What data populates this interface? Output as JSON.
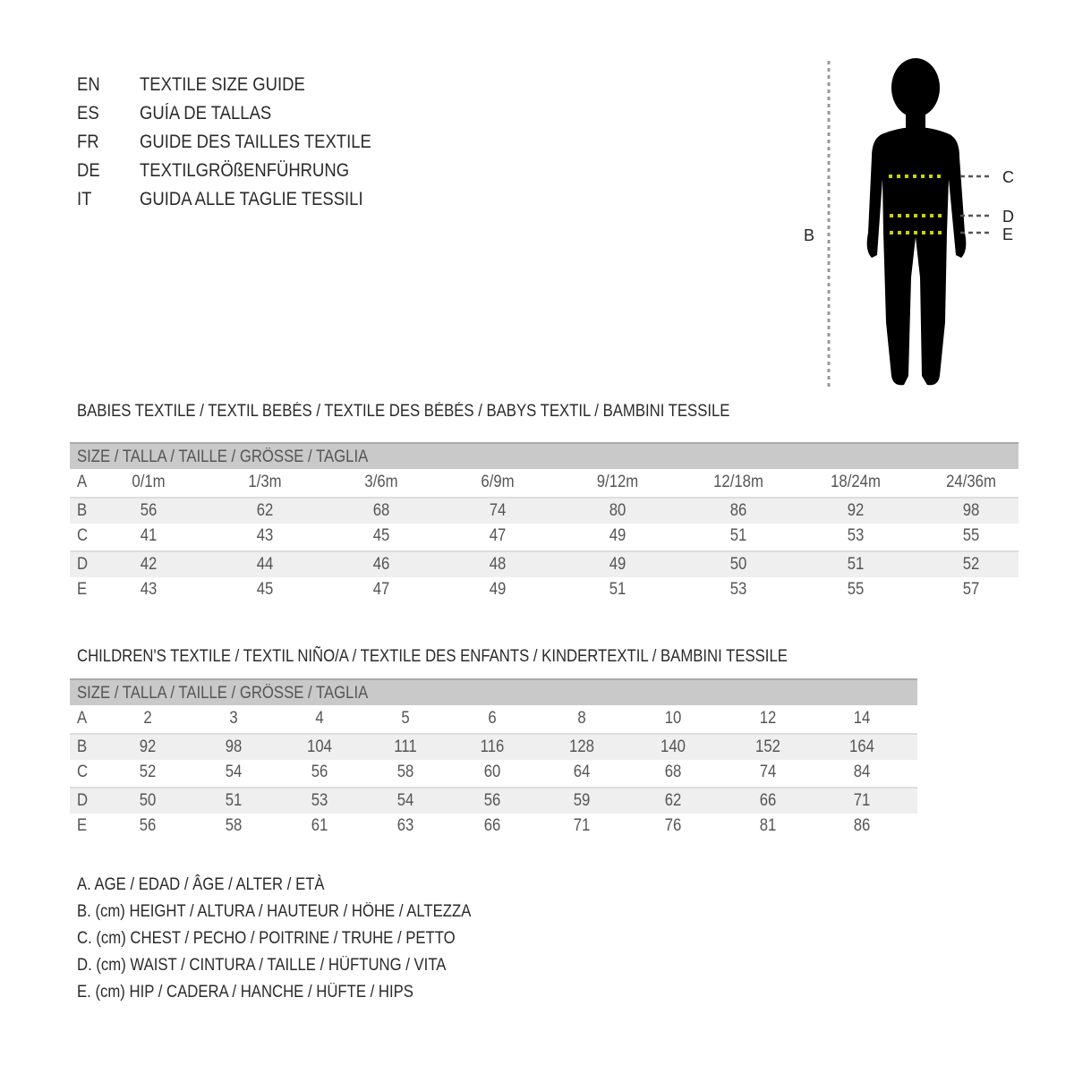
{
  "guide": [
    {
      "lang": "EN",
      "title": "TEXTILE SIZE GUIDE"
    },
    {
      "lang": "ES",
      "title": "GUÍA DE TALLAS"
    },
    {
      "lang": "FR",
      "title": "GUIDE DES TAILLES TEXTILE"
    },
    {
      "lang": "DE",
      "title": "TEXTILGRÖßENFÜHRUNG"
    },
    {
      "lang": "IT",
      "title": "GUIDA ALLE TAGLIE TESSILI"
    }
  ],
  "figure": {
    "labels": {
      "B": "B",
      "C": "C",
      "D": "D",
      "E": "E"
    },
    "measure_line_color": "#c8d400"
  },
  "babies": {
    "title": "BABIES TEXTILE / TEXTIL BEBÉS / TEXTILE DES BÉBÉS / BABYS TEXTIL  / BAMBINI TESSILE",
    "header": "SIZE / TALLA / TAILLE / GRÖSSE / TAGLIA",
    "rows": [
      {
        "label": "A",
        "values": [
          "0/1m",
          "1/3m",
          "3/6m",
          "6/9m",
          "9/12m",
          "12/18m",
          "18/24m",
          "24/36m"
        ]
      },
      {
        "label": "B",
        "values": [
          "56",
          "62",
          "68",
          "74",
          "80",
          "86",
          "92",
          "98"
        ]
      },
      {
        "label": "C",
        "values": [
          "41",
          "43",
          "45",
          "47",
          "49",
          "51",
          "53",
          "55"
        ]
      },
      {
        "label": "D",
        "values": [
          "42",
          "44",
          "46",
          "48",
          "49",
          "50",
          "51",
          "52"
        ]
      },
      {
        "label": "E",
        "values": [
          "43",
          "45",
          "47",
          "49",
          "51",
          "53",
          "55",
          "57"
        ]
      }
    ]
  },
  "children": {
    "title": "CHILDREN'S TEXTILE / TEXTIL NIÑO/A / TEXTILE DES ENFANTS / KINDERTEXTIL / BAMBINI TESSILE",
    "header": "SIZE / TALLA / TAILLE / GRÖSSE / TAGLIA",
    "rows": [
      {
        "label": "A",
        "values": [
          "2",
          "3",
          "4",
          "5",
          "6",
          "8",
          "10",
          "12",
          "14"
        ]
      },
      {
        "label": "B",
        "values": [
          "92",
          "98",
          "104",
          "111",
          "116",
          "128",
          "140",
          "152",
          "164"
        ]
      },
      {
        "label": "C",
        "values": [
          "52",
          "54",
          "56",
          "58",
          "60",
          "64",
          "68",
          "74",
          "84"
        ]
      },
      {
        "label": "D",
        "values": [
          "50",
          "51",
          "53",
          "54",
          "56",
          "59",
          "62",
          "66",
          "71"
        ]
      },
      {
        "label": "E",
        "values": [
          "56",
          "58",
          "61",
          "63",
          "66",
          "71",
          "76",
          "81",
          "86"
        ]
      }
    ]
  },
  "legend": [
    "A. AGE / EDAD / ÂGE / ALTER / ETÀ",
    "B. (cm) HEIGHT / ALTURA / HAUTEUR / HÖHE / ALTEZZA",
    "C. (cm) CHEST / PECHO / POITRINE / TRUHE / PETTO",
    "D. (cm) WAIST / CINTURA / TAILLE / HÜFTUNG / VITA",
    "E. (cm) HIP / CADERA / HANCHE / HÜFTE / HIPS"
  ]
}
